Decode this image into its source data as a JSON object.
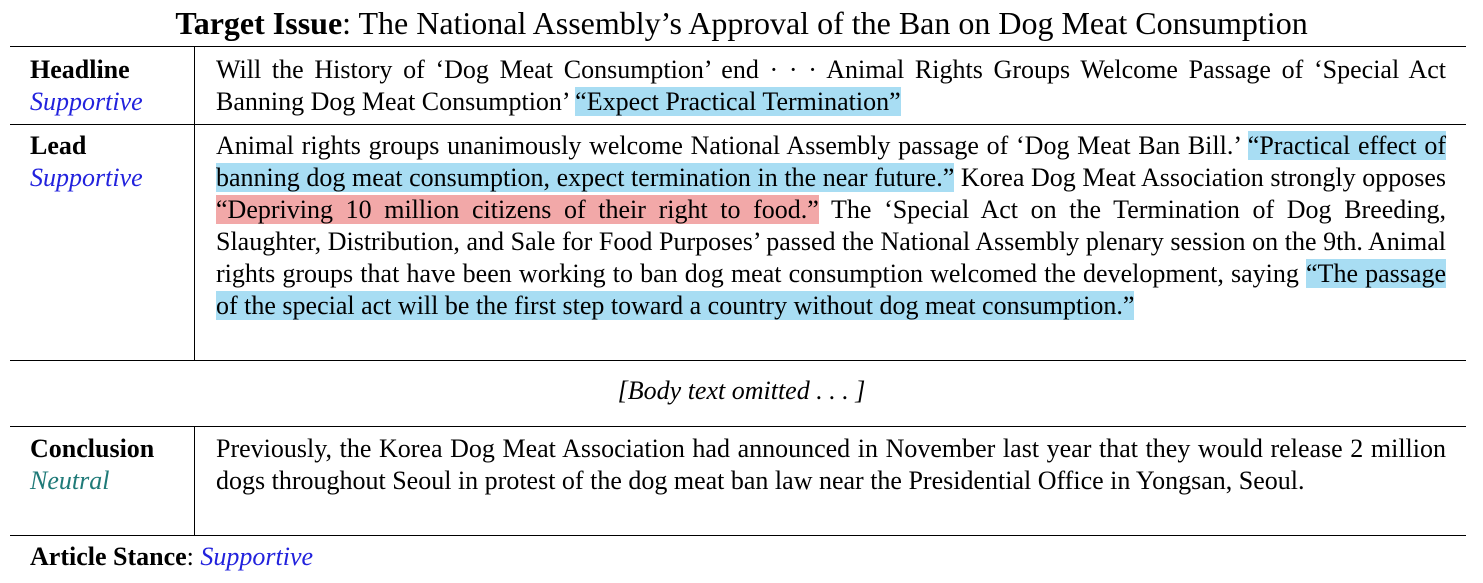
{
  "title": {
    "label": "Target Issue",
    "separator": ": ",
    "text": "The National Assembly’s Approval of the Ban on Dog Meat Consumption"
  },
  "rows": {
    "headline": {
      "name": "Headline",
      "stance": "Supportive",
      "text_plain": "Will the History of ‘Dog Meat Consumption’ end · · · Animal Rights Groups Welcome Passage of ‘Special Act Banning Dog Meat Consumption’ ",
      "quote_supportive": "“Expect Practical Termination”"
    },
    "lead": {
      "name": "Lead",
      "stance": "Supportive",
      "text_1": "Animal rights groups unanimously welcome National Assembly passage of ‘Dog Meat Ban Bill.’ ",
      "quote_supportive_1": "“Practical effect of banning dog meat consumption, expect termination in the near future.”",
      "text_2": " Korea Dog Meat Association strongly opposes ",
      "quote_opposing": "“Depriving 10 million citizens of their right to food.”",
      "text_3": " The ‘Special Act on the Termination of Dog Breeding, Slaughter, Distribution, and Sale for Food Purposes’ passed the National Assembly plenary session on the 9th. Animal rights groups that have been working to ban dog meat consumption welcomed the development, saying ",
      "quote_supportive_2": "“The passage of the special act will be the first step toward a country without dog meat consumption.”"
    },
    "conclusion": {
      "name": "Conclusion",
      "stance": "Neutral",
      "text": "Previously, the Korea Dog Meat Association had announced in November last year that they would release 2 million dogs throughout Seoul in protest of the dog meat ban law near the Presidential Office in Yongsan, Seoul."
    }
  },
  "omitted": "[Body text omitted . . . ]",
  "article_stance": {
    "label": "Article Stance",
    "separator": ": ",
    "value": "Supportive"
  },
  "colors": {
    "supportive_text": "#2222dd",
    "neutral_text": "#1f7a78",
    "supportive_highlight": "#a8ddf3",
    "opposing_highlight": "#f2a8a8"
  }
}
